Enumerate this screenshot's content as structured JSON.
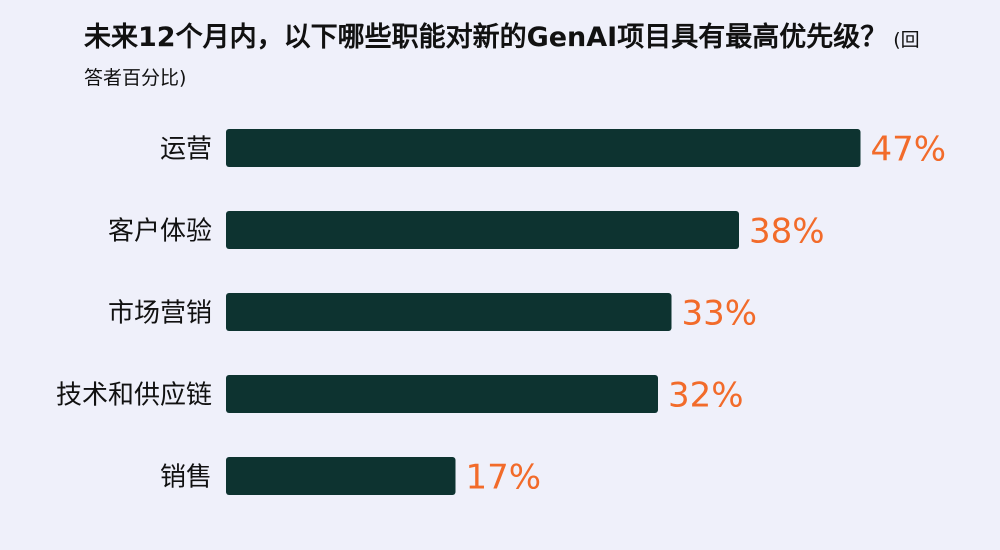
{
  "chart_data": {
    "type": "bar",
    "orientation": "horizontal",
    "title": "未来12个月内，以下哪些职能对新的GenAI项目具有最高优先级？",
    "subtitle": "(回答者百分比)",
    "categories": [
      "运营",
      "客户体验",
      "市场营销",
      "技术和供应链",
      "销售"
    ],
    "values": [
      47,
      38,
      33,
      32,
      17
    ],
    "value_labels": [
      "47%",
      "38%",
      "33%",
      "32%",
      "17%"
    ],
    "color": "#0d3330",
    "label_color": "#f26b2a"
  }
}
